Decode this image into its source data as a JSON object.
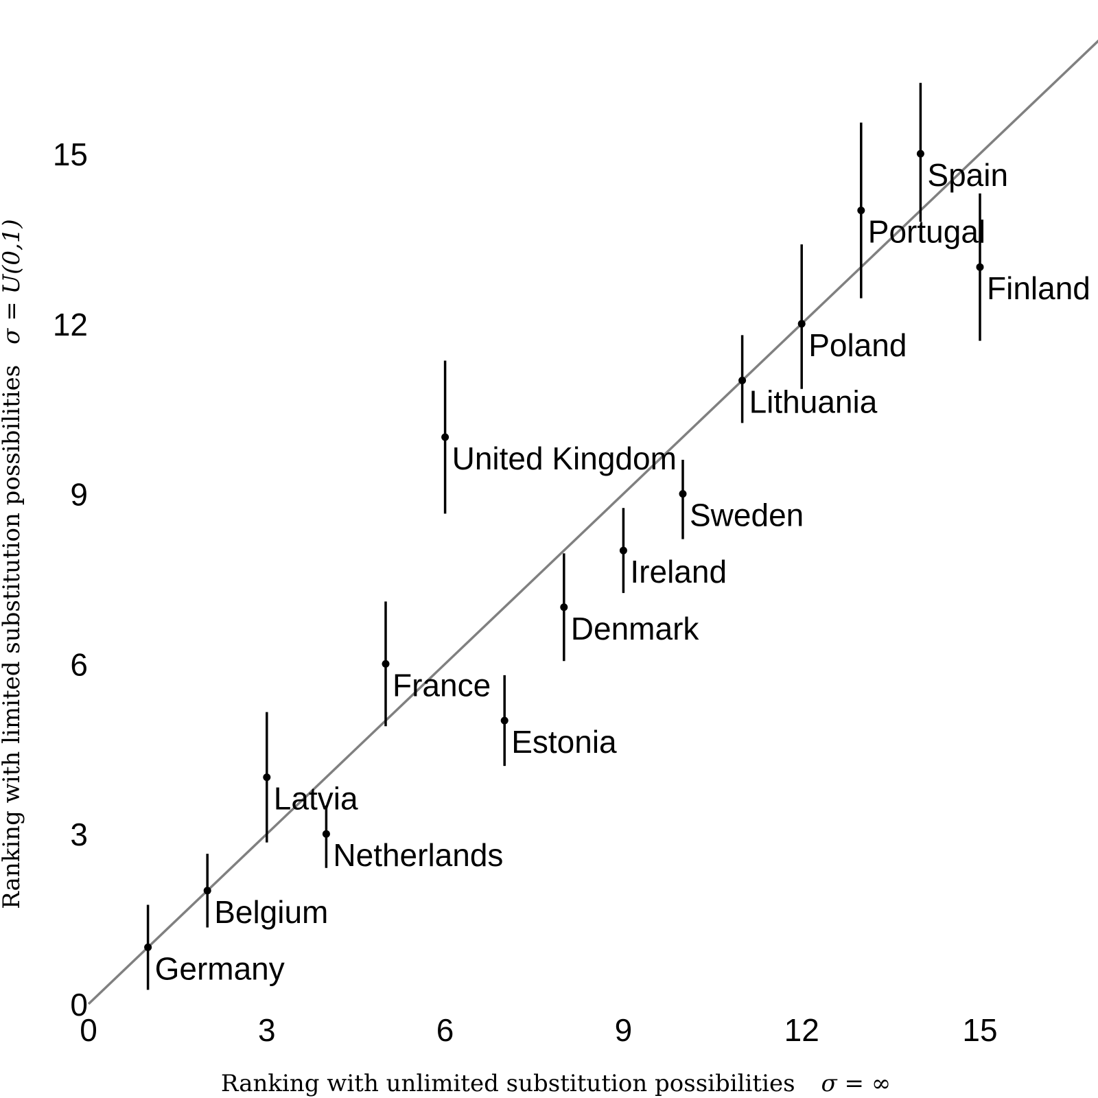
{
  "chart_data": {
    "type": "scatter",
    "xlabel": "Ranking with unlimited substitution possibilities",
    "xlabel_symbol": "σ = ∞",
    "ylabel": "Ranking with limited substitution possibilities",
    "ylabel_symbol": "σ = U(0,1)",
    "xlim": [
      0,
      17
    ],
    "ylim": [
      0,
      17
    ],
    "x_ticks": [
      "0",
      "3",
      "6",
      "9",
      "12",
      "15"
    ],
    "y_ticks": [
      "0",
      "3",
      "6",
      "9",
      "12",
      "15"
    ],
    "reference_line": "y = x",
    "grid": false,
    "colors": {
      "points": "#000000",
      "reference_line": "#808080"
    },
    "points": [
      {
        "label": "Germany",
        "x": 1,
        "y": 1,
        "low": 0.25,
        "high": 1.75
      },
      {
        "label": "Belgium",
        "x": 2,
        "y": 2,
        "low": 1.35,
        "high": 2.65
      },
      {
        "label": "Latvia",
        "x": 3,
        "y": 4,
        "low": 2.85,
        "high": 5.15
      },
      {
        "label": "Netherlands",
        "x": 4,
        "y": 3,
        "low": 2.4,
        "high": 3.5
      },
      {
        "label": "France",
        "x": 5,
        "y": 6,
        "low": 4.9,
        "high": 7.1
      },
      {
        "label": "United Kingdom",
        "x": 6,
        "y": 10,
        "low": 8.65,
        "high": 11.35
      },
      {
        "label": "Estonia",
        "x": 7,
        "y": 5,
        "low": 4.2,
        "high": 5.8
      },
      {
        "label": "Denmark",
        "x": 8,
        "y": 7,
        "low": 6.05,
        "high": 7.95
      },
      {
        "label": "Ireland",
        "x": 9,
        "y": 8,
        "low": 7.25,
        "high": 8.75
      },
      {
        "label": "Sweden",
        "x": 10,
        "y": 9,
        "low": 8.2,
        "high": 9.6
      },
      {
        "label": "Lithuania",
        "x": 11,
        "y": 11,
        "low": 10.25,
        "high": 11.8
      },
      {
        "label": "Poland",
        "x": 12,
        "y": 12,
        "low": 10.85,
        "high": 13.4
      },
      {
        "label": "Portugal",
        "x": 13,
        "y": 14,
        "low": 12.45,
        "high": 15.55
      },
      {
        "label": "Spain",
        "x": 14,
        "y": 15,
        "low": 13.8,
        "high": 16.25
      },
      {
        "label": "Finland",
        "x": 15,
        "y": 13,
        "low": 11.7,
        "high": 14.3
      }
    ]
  }
}
